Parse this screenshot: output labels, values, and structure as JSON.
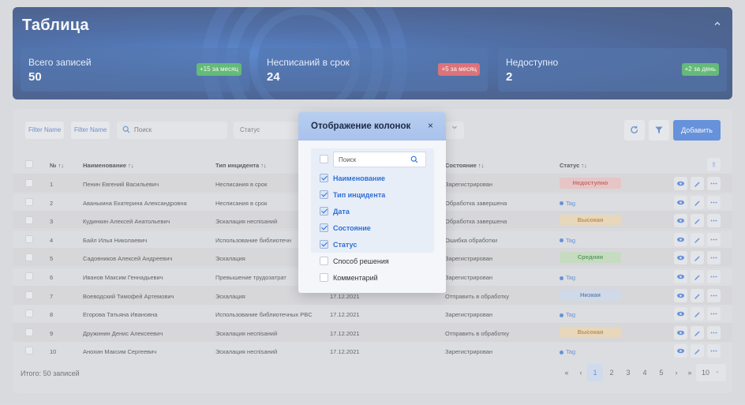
{
  "header": {
    "title": "Таблица",
    "stats": [
      {
        "label": "Всего записей",
        "value": "50",
        "badge": "+15 за месяц",
        "badge_color": "#2ea84a"
      },
      {
        "label": "Несписаний в срок",
        "value": "24",
        "badge": "+5 за месяц",
        "badge_color": "#d9434b"
      },
      {
        "label": "Недоступно",
        "value": "2",
        "badge": "+2 за день",
        "badge_color": "#2ea84a"
      }
    ]
  },
  "toolbar": {
    "filter_name_1": "Filter Name",
    "filter_name_2": "Filter Name",
    "search_placeholder": "Поиск",
    "status_select": "Статус",
    "add_label": "Добавить"
  },
  "table": {
    "columns": {
      "num": "№",
      "name": "Наименование",
      "type": "Тип инцидента",
      "state": "Состояние",
      "status": "Статус"
    },
    "rows": [
      {
        "num": "1",
        "name": "Пенин Евгений Васильевич",
        "type": "Несписания в срок",
        "date": "",
        "state": "Зарегистрирован",
        "status": "Недоступно",
        "status_kind": "pill-red"
      },
      {
        "num": "2",
        "name": "Аванькина Екатерина Александровна",
        "type": "Несписания в срок",
        "date": "",
        "state": "Обработка завершена",
        "status": "Tag",
        "status_kind": "tag"
      },
      {
        "num": "3",
        "name": "Кудинкин Алексей Анатольевич",
        "type": "Эскалация неспisаний",
        "date": "",
        "state": "Обработка завершена",
        "status": "Высокая",
        "status_kind": "pill-orange"
      },
      {
        "num": "4",
        "name": "Байл Илья Николаевич",
        "type": "Использование библиотечн",
        "date": "",
        "state": "Ошибка обработки",
        "status": "Tag",
        "status_kind": "tag"
      },
      {
        "num": "5",
        "name": "Садовников Алексей Андреевич",
        "type": "Эскалация",
        "date": "",
        "state": "Зарегистрирован",
        "status": "Средняя",
        "status_kind": "pill-green"
      },
      {
        "num": "6",
        "name": "Иванов Максим Геннадьевич",
        "type": "Превышение трудозатрат",
        "date": "",
        "state": "Зарегистрирован",
        "status": "Tag",
        "status_kind": "tag"
      },
      {
        "num": "7",
        "name": "Воеводский Тимофей Артемович",
        "type": "Эскалация",
        "date": "17.12.2021",
        "state": "Отправить в обработку",
        "status": "Низкая",
        "status_kind": "pill-blue"
      },
      {
        "num": "8",
        "name": "Егорова Татьяна Ивановна",
        "type": "Использование библиотечных PBC",
        "date": "17.12.2021",
        "state": "Зарегистрирован",
        "status": "Tag",
        "status_kind": "tag"
      },
      {
        "num": "9",
        "name": "Дружинин Денис Алексеевич",
        "type": "Эскалация неспisаний",
        "date": "17.12.2021",
        "state": "Отправить в обработку",
        "status": "Высокая",
        "status_kind": "pill-orange"
      },
      {
        "num": "10",
        "name": "Анохин Максим Сергеевич",
        "type": "Эскалация неспisаний",
        "date": "17.12.2021",
        "state": "Зарегистрирован",
        "status": "Tag",
        "status_kind": "tag"
      }
    ]
  },
  "footer": {
    "total": "Итого: 50 записей",
    "first": "«",
    "prev": "‹",
    "pages": [
      "1",
      "2",
      "3",
      "4",
      "5"
    ],
    "next": "›",
    "last": "»",
    "per_page": "10"
  },
  "modal": {
    "title": "Отображение колонок",
    "close": "×",
    "search_placeholder": "Поиск",
    "options": [
      {
        "label": "Наименование",
        "checked": true
      },
      {
        "label": "Тип инцидента",
        "checked": true
      },
      {
        "label": "Дата",
        "checked": true
      },
      {
        "label": "Состояние",
        "checked": true
      },
      {
        "label": "Статус",
        "checked": true
      },
      {
        "label": "Способ решения",
        "checked": false
      },
      {
        "label": "Комментарий",
        "checked": false
      }
    ]
  }
}
